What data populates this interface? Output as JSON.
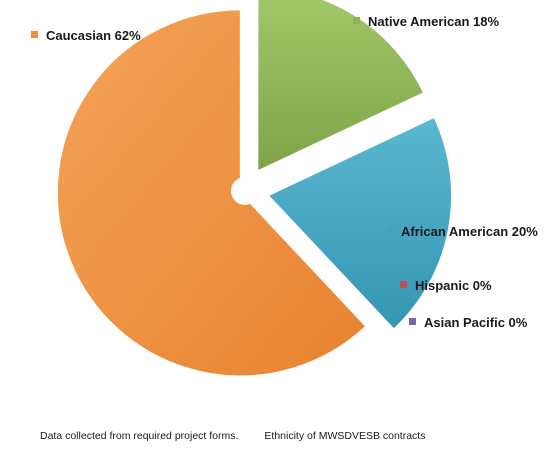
{
  "chart_data": {
    "type": "pie",
    "style": "exploded pie with center hole",
    "slices": [
      {
        "label": "Native American 18%",
        "value": 18,
        "color": "#8cb054"
      },
      {
        "label": "African American 20%",
        "value": 20,
        "color": "#3fa3bf"
      },
      {
        "label": "Hispanic 0%",
        "value": 0,
        "color": "#c0504d"
      },
      {
        "label": "Asian Pacific 0%",
        "value": 0,
        "color": "#8064a2"
      },
      {
        "label": "Caucasian 62%",
        "value": 62,
        "color": "#ee8f3f"
      }
    ]
  },
  "footer": {
    "note": "Data collected from required project forms.",
    "caption": "Ethnicity  of MWSDVESB contracts"
  }
}
